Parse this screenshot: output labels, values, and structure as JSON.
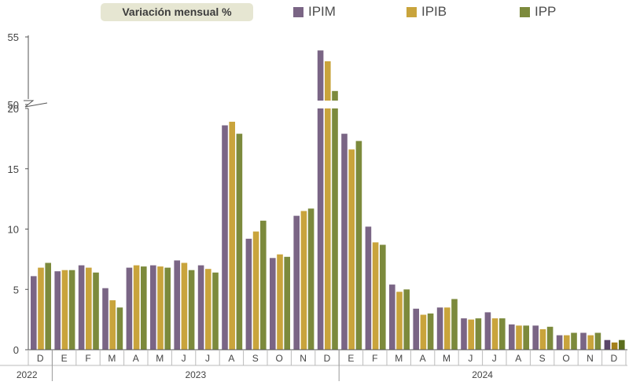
{
  "chart_data": {
    "type": "bar",
    "title": "Variación mensual %",
    "legend_position": "top",
    "broken_axis": true,
    "y_ticks_lower": [
      "0",
      "5",
      "10",
      "15",
      "20"
    ],
    "y_ticks_upper": [
      "50",
      "55"
    ],
    "ylim": [
      0,
      55
    ],
    "axis_break": [
      20,
      50
    ],
    "categories": [
      "D",
      "E",
      "F",
      "M",
      "A",
      "M",
      "J",
      "J",
      "A",
      "S",
      "O",
      "N",
      "D",
      "E",
      "F",
      "M",
      "A",
      "M",
      "J",
      "J",
      "A",
      "S",
      "O",
      "N",
      "D"
    ],
    "year_labels": [
      {
        "label": "2022",
        "start": 0,
        "end": 0
      },
      {
        "label": "2023",
        "start": 1,
        "end": 12
      },
      {
        "label": "2024",
        "start": 13,
        "end": 24
      }
    ],
    "series": [
      {
        "name": "IPIM",
        "color": "#7a6585",
        "values": [
          6.1,
          6.5,
          7.0,
          5.1,
          6.8,
          7.0,
          7.4,
          7.0,
          18.6,
          9.2,
          7.6,
          11.1,
          54.0,
          17.9,
          10.2,
          5.4,
          3.4,
          3.5,
          2.6,
          3.1,
          2.1,
          2.0,
          1.2,
          1.4,
          0.8
        ]
      },
      {
        "name": "IPIB",
        "color": "#c9a43c",
        "values": [
          6.8,
          6.6,
          6.8,
          4.1,
          7.0,
          6.9,
          7.2,
          6.7,
          18.9,
          9.8,
          7.9,
          11.5,
          53.2,
          16.6,
          8.9,
          4.8,
          2.9,
          3.5,
          2.5,
          2.6,
          2.0,
          1.7,
          1.2,
          1.2,
          0.6
        ]
      },
      {
        "name": "IPP",
        "color": "#7c8a3c",
        "values": [
          7.2,
          6.6,
          6.4,
          3.5,
          6.9,
          6.8,
          6.6,
          6.4,
          17.9,
          10.7,
          7.7,
          11.7,
          51.0,
          17.3,
          8.7,
          5.0,
          3.0,
          4.2,
          2.6,
          2.6,
          2.0,
          1.9,
          1.4,
          1.4,
          0.8
        ]
      }
    ],
    "last_category_colors": [
      "#5a4668",
      "#a4801a",
      "#5a6d1d"
    ]
  }
}
